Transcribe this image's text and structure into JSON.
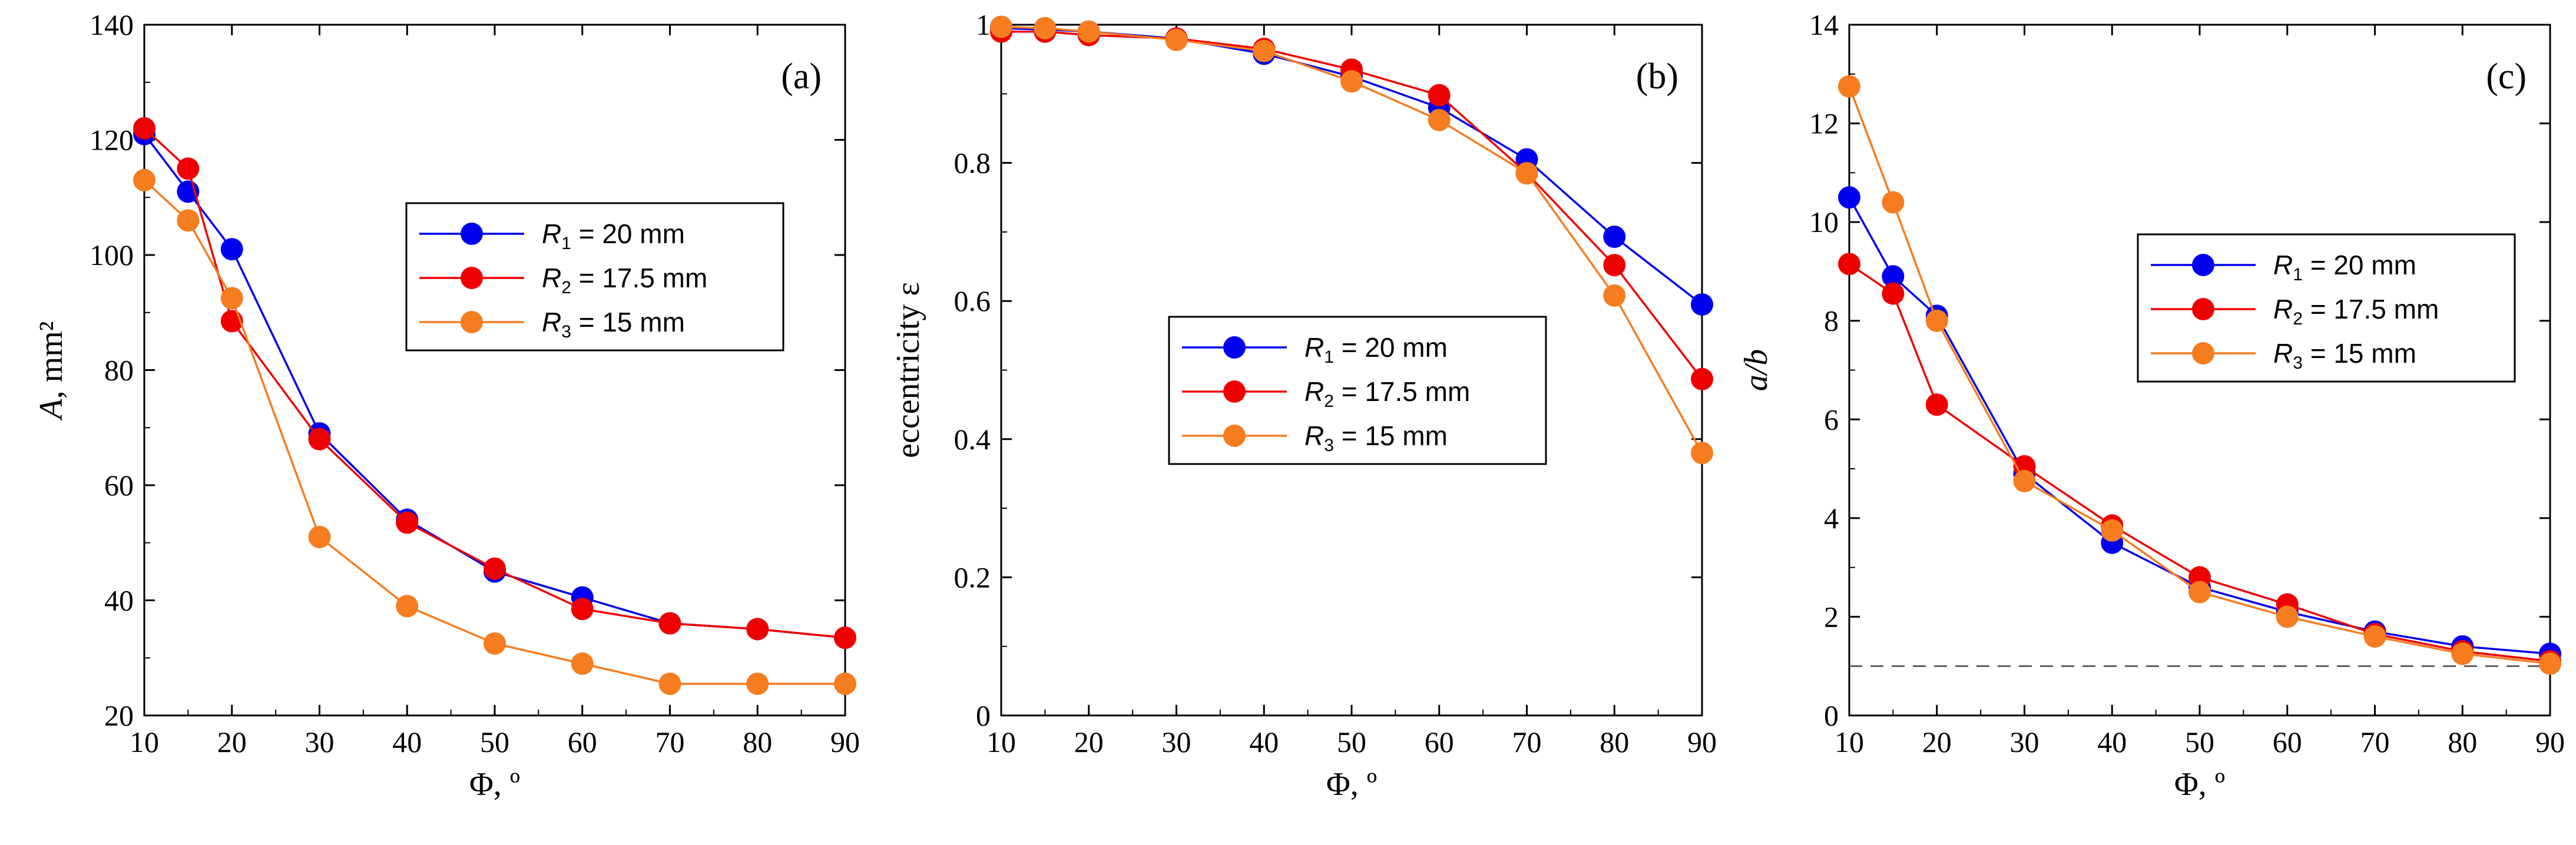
{
  "chart_data": [
    {
      "type": "line",
      "panel_label": "(a)",
      "xlabel": "Φ, º",
      "ylabel_italic": "A",
      "ylabel_rest": ", mm²",
      "xlim": [
        10,
        90
      ],
      "ylim": [
        20,
        140
      ],
      "xticks": [
        "10",
        "20",
        "30",
        "40",
        "50",
        "60",
        "70",
        "80",
        "90"
      ],
      "yticks": [
        "20",
        "40",
        "60",
        "80",
        "100",
        "120",
        "140"
      ],
      "grid": false,
      "legend_position": "center-right",
      "x": [
        10,
        15,
        20,
        30,
        40,
        50,
        60,
        70,
        80,
        90
      ],
      "series": [
        {
          "name_main": "R",
          "name_sub": "1",
          "name_rest": " = 20 mm",
          "color": "#0000ee",
          "values": [
            121,
            111,
            101,
            69,
            54,
            45,
            40.5,
            36,
            35,
            33.5
          ]
        },
        {
          "name_main": "R",
          "name_sub": "2",
          "name_rest": " = 17.5 mm",
          "color": "#ee0000",
          "values": [
            122,
            115,
            88.5,
            68,
            53.5,
            45.5,
            38.5,
            36,
            35,
            33.5
          ]
        },
        {
          "name_main": "R",
          "name_sub": "3",
          "name_rest": " = 15 mm",
          "color": "#f57c1f",
          "values": [
            113,
            106,
            92.5,
            51,
            39,
            32.5,
            29,
            25.5,
            25.5,
            25.5
          ]
        }
      ]
    },
    {
      "type": "line",
      "panel_label": "(b)",
      "xlabel": "Φ, º",
      "ylabel": "eccentricity ε",
      "xlim": [
        10,
        90
      ],
      "ylim": [
        0,
        1
      ],
      "xticks": [
        "10",
        "20",
        "30",
        "40",
        "50",
        "60",
        "70",
        "80",
        "90"
      ],
      "yticks": [
        "0",
        "0.2",
        "0.4",
        "0.6",
        "0.8",
        "1"
      ],
      "grid": false,
      "legend_position": "center-right",
      "x": [
        10,
        15,
        20,
        30,
        40,
        50,
        60,
        70,
        80,
        90
      ],
      "series": [
        {
          "name_main": "R",
          "name_sub": "1",
          "name_rest": " = 20 mm",
          "color": "#0000ee",
          "values": [
            0.995,
            0.993,
            0.99,
            0.98,
            0.958,
            0.925,
            0.88,
            0.805,
            0.693,
            0.595
          ]
        },
        {
          "name_main": "R",
          "name_sub": "2",
          "name_rest": " = 17.5 mm",
          "color": "#ee0000",
          "values": [
            0.99,
            0.99,
            0.985,
            0.98,
            0.965,
            0.935,
            0.898,
            0.785,
            0.652,
            0.487
          ]
        },
        {
          "name_main": "R",
          "name_sub": "3",
          "name_rest": " = 15 mm",
          "color": "#f57c1f",
          "values": [
            0.997,
            0.995,
            0.99,
            0.978,
            0.962,
            0.918,
            0.862,
            0.785,
            0.608,
            0.38
          ]
        }
      ]
    },
    {
      "type": "line",
      "panel_label": "(c)",
      "xlabel": "Φ, º",
      "ylabel_italic": "a/b",
      "xlim": [
        10,
        90
      ],
      "ylim": [
        0,
        14
      ],
      "xticks": [
        "10",
        "20",
        "30",
        "40",
        "50",
        "60",
        "70",
        "80",
        "90"
      ],
      "yticks": [
        "0",
        "2",
        "4",
        "6",
        "8",
        "10",
        "12",
        "14"
      ],
      "grid": false,
      "legend_position": "center-right",
      "reference_line_y": 1,
      "x": [
        10,
        15,
        20,
        30,
        40,
        50,
        60,
        70,
        80,
        90
      ],
      "series": [
        {
          "name_main": "R",
          "name_sub": "1",
          "name_rest": " = 20 mm",
          "color": "#0000ee",
          "values": [
            10.5,
            8.9,
            8.1,
            4.9,
            3.5,
            2.6,
            2.1,
            1.7,
            1.4,
            1.25
          ]
        },
        {
          "name_main": "R",
          "name_sub": "2",
          "name_rest": " = 17.5 mm",
          "color": "#ee0000",
          "values": [
            9.15,
            8.55,
            6.3,
            5.05,
            3.85,
            2.8,
            2.25,
            1.65,
            1.3,
            1.1
          ]
        },
        {
          "name_main": "R",
          "name_sub": "3",
          "name_rest": " = 15 mm",
          "color": "#f57c1f",
          "values": [
            12.75,
            10.4,
            8.0,
            4.75,
            3.75,
            2.5,
            2.0,
            1.6,
            1.25,
            1.05
          ]
        }
      ]
    }
  ]
}
